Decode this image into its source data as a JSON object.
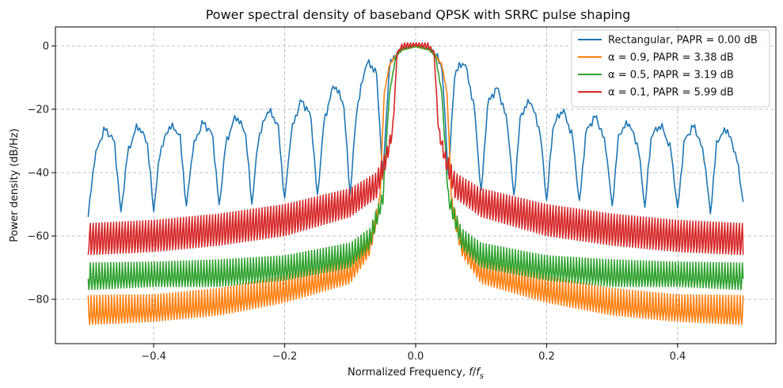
{
  "chart_data": {
    "type": "line",
    "title": "Power spectral density of baseband QPSK with SRRC pulse shaping",
    "xlabel": "Normalized Frequency, f/f_s",
    "ylabel": "Power density (dB/Hz)",
    "xlim": [
      -0.55,
      0.55
    ],
    "ylim": [
      -94,
      6
    ],
    "xticks": [
      -0.4,
      -0.2,
      0.0,
      0.2,
      0.4
    ],
    "xtick_labels": [
      "−0.4",
      "−0.2",
      "0.0",
      "0.2",
      "0.4"
    ],
    "yticks": [
      0,
      -20,
      -40,
      -60,
      -80
    ],
    "ytick_labels": [
      "0",
      "−20",
      "−40",
      "−60",
      "−80"
    ],
    "grid": true,
    "legend_position": "top-right",
    "series": [
      {
        "name": "Rectangular, PAPR = 0.00 dB",
        "color": "#1f77b4",
        "description": "sinc^2 spectrum with nulls every 0.05",
        "x": [
          -0.5,
          -0.49,
          -0.475,
          -0.46,
          -0.45,
          -0.44,
          -0.425,
          -0.41,
          -0.4,
          -0.39,
          -0.375,
          -0.36,
          -0.35,
          -0.34,
          -0.325,
          -0.31,
          -0.3,
          -0.29,
          -0.275,
          -0.26,
          -0.25,
          -0.24,
          -0.225,
          -0.21,
          -0.2,
          -0.19,
          -0.175,
          -0.16,
          -0.15,
          -0.14,
          -0.125,
          -0.11,
          -0.1,
          -0.09,
          -0.075,
          -0.06,
          -0.05,
          -0.04,
          -0.025,
          0.0,
          0.025,
          0.04,
          0.05,
          0.06,
          0.075,
          0.09,
          0.1,
          0.11,
          0.125,
          0.14,
          0.15,
          0.16,
          0.175,
          0.19,
          0.2,
          0.21,
          0.225,
          0.24,
          0.25,
          0.26,
          0.275,
          0.29,
          0.3,
          0.31,
          0.325,
          0.34,
          0.35,
          0.36,
          0.375,
          0.39,
          0.4,
          0.41,
          0.425,
          0.44,
          0.45,
          0.46,
          0.475,
          0.49,
          0.5
        ],
        "y": [
          -54,
          -35,
          -26,
          -30,
          -53,
          -34,
          -25,
          -30,
          -52,
          -33,
          -25,
          -28,
          -51,
          -32,
          -24,
          -28,
          -51,
          -31,
          -22,
          -27,
          -50,
          -29,
          -20,
          -25,
          -49,
          -27,
          -17,
          -22,
          -48,
          -24,
          -12,
          -18,
          -47,
          -20,
          -5,
          -8,
          -41,
          -6,
          -1,
          0,
          -1,
          -6,
          -41,
          -8,
          -5,
          -20,
          -47,
          -18,
          -13,
          -24,
          -48,
          -22,
          -17,
          -27,
          -49,
          -25,
          -20,
          -29,
          -50,
          -27,
          -22,
          -31,
          -51,
          -28,
          -24,
          -32,
          -51,
          -28,
          -25,
          -33,
          -52,
          -30,
          -25,
          -34,
          -53,
          -30,
          -26,
          -35,
          -49
        ]
      },
      {
        "name": "α = 0.9, PAPR = 3.38 dB",
        "color": "#ff7f0e",
        "description": "main lobe to |f|=0.048, sidelobes oscillating",
        "x": [
          -0.5,
          -0.4,
          -0.3,
          -0.2,
          -0.1,
          -0.07,
          -0.055,
          -0.048,
          -0.04,
          -0.03,
          -0.02,
          0.0,
          0.02,
          0.03,
          0.04,
          0.048,
          0.055,
          0.07,
          0.1,
          0.2,
          0.3,
          0.4,
          0.5
        ],
        "y_upper": [
          -76,
          -76,
          -74,
          -70,
          -65,
          -58,
          -46,
          -15,
          -6,
          -3,
          -1,
          0,
          -1,
          -3,
          -6,
          -15,
          -46,
          -58,
          -65,
          -70,
          -74,
          -76,
          -76
        ],
        "y_lower": [
          -88,
          -87,
          -85,
          -81,
          -75,
          -66,
          -52,
          -15,
          -6,
          -3,
          -1,
          0,
          -1,
          -3,
          -6,
          -15,
          -52,
          -66,
          -75,
          -81,
          -85,
          -87,
          -88
        ]
      },
      {
        "name": "α = 0.5, PAPR = 3.19 dB",
        "color": "#2ca02c",
        "description": "main lobe to |f|=0.038, sidelobes oscillating",
        "x": [
          -0.5,
          -0.4,
          -0.3,
          -0.2,
          -0.1,
          -0.07,
          -0.05,
          -0.04,
          -0.03,
          -0.02,
          0.0,
          0.02,
          0.03,
          0.04,
          0.05,
          0.07,
          0.1,
          0.2,
          0.3,
          0.4,
          0.5
        ],
        "y_upper": [
          -65,
          -65,
          -64,
          -63,
          -59,
          -55,
          -44,
          -15,
          -3,
          -1,
          0,
          -1,
          -3,
          -15,
          -44,
          -55,
          -59,
          -63,
          -64,
          -65,
          -65
        ],
        "y_lower": [
          -77,
          -76,
          -76,
          -74,
          -70,
          -64,
          -50,
          -15,
          -3,
          -1,
          0,
          -1,
          -3,
          -15,
          -50,
          -64,
          -70,
          -74,
          -76,
          -76,
          -77
        ]
      },
      {
        "name": "α = 0.1, PAPR = 5.99 dB",
        "color": "#d62728",
        "description": "narrow main lobe to |f|=0.028, elevated sidelobes",
        "x": [
          -0.5,
          -0.4,
          -0.3,
          -0.2,
          -0.1,
          -0.06,
          -0.045,
          -0.035,
          -0.028,
          -0.02,
          0.0,
          0.02,
          0.028,
          0.035,
          0.045,
          0.06,
          0.1,
          0.2,
          0.3,
          0.4,
          0.5
        ],
        "y_upper": [
          -56,
          -55,
          -53,
          -50,
          -45,
          -40,
          -33,
          -25,
          -2,
          1,
          1,
          1,
          -2,
          -25,
          -33,
          -40,
          -45,
          -50,
          -53,
          -55,
          -56
        ],
        "y_lower": [
          -66,
          -65,
          -63,
          -60,
          -54,
          -48,
          -38,
          -28,
          -2,
          -1,
          0,
          -1,
          -2,
          -28,
          -38,
          -48,
          -54,
          -60,
          -63,
          -65,
          -66
        ]
      }
    ]
  }
}
